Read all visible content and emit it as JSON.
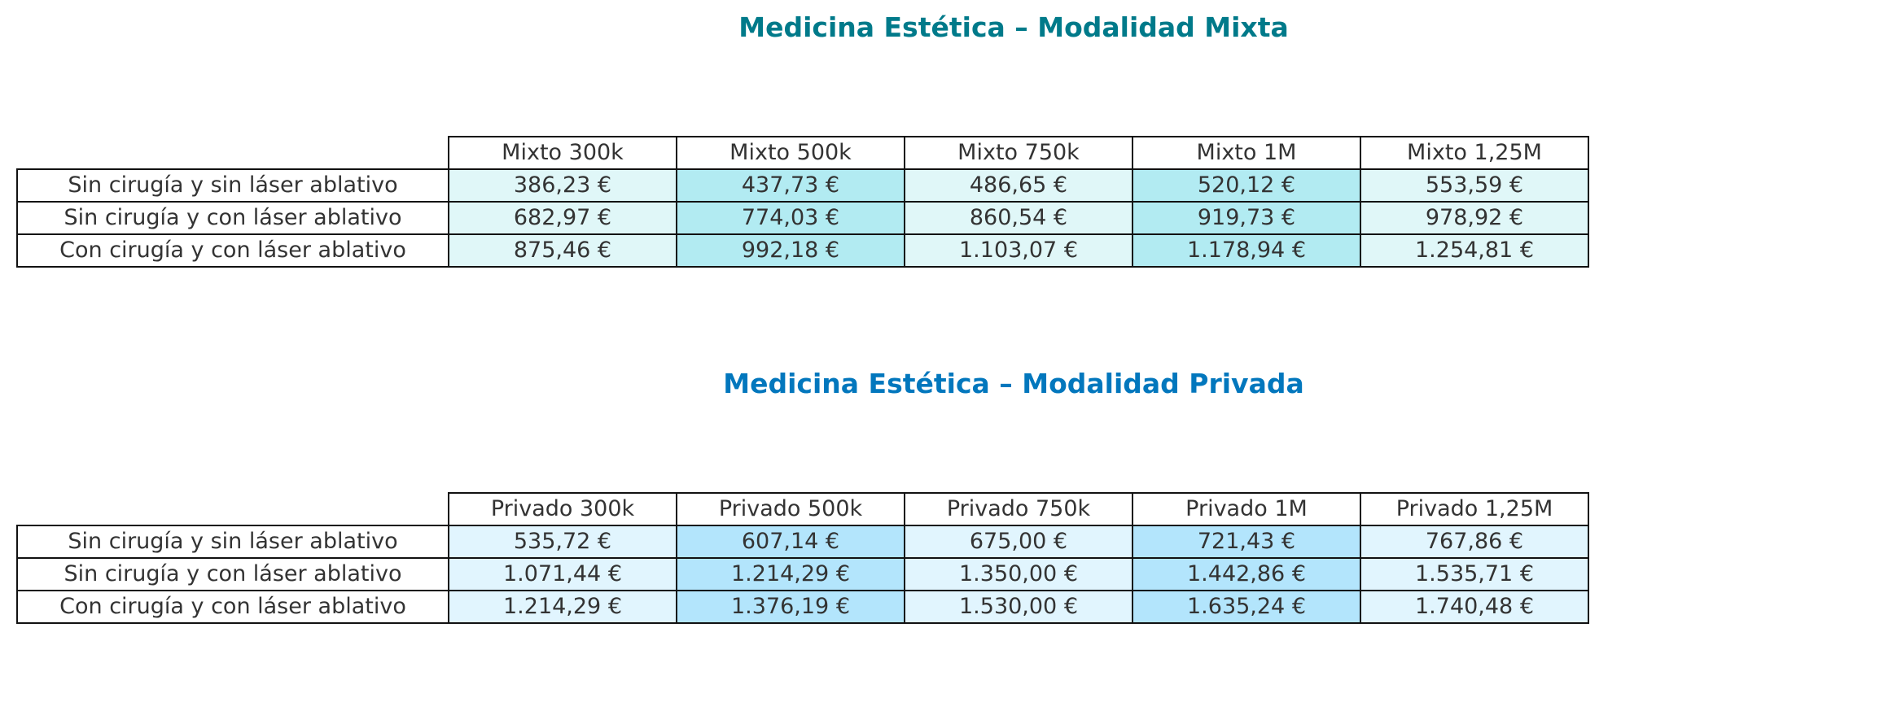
{
  "chart_data": [
    {
      "type": "table",
      "id": "mixta",
      "title": "Medicina Estética – Modalidad Mixta",
      "title_color": "#007a8a",
      "fill_light": "#e0f7f8",
      "fill_dark": "#b2ebf2",
      "columns": [
        "Mixto 300k",
        "Mixto 500k",
        "Mixto 750k",
        "Mixto 1M",
        "Mixto 1,25M"
      ],
      "rows": [
        {
          "label": "Sin cirugía y sin láser ablativo",
          "values": [
            "386,23 €",
            "437,73 €",
            "486,65 €",
            "520,12 €",
            "553,59 €"
          ]
        },
        {
          "label": "Sin cirugía y con láser ablativo",
          "values": [
            "682,97 €",
            "774,03 €",
            "860,54 €",
            "919,73 €",
            "978,92 €"
          ]
        },
        {
          "label": "Con cirugía y con láser ablativo",
          "values": [
            "875,46 €",
            "992,18 €",
            "1.103,07 €",
            "1.178,94 €",
            "1.254,81 €"
          ]
        }
      ]
    },
    {
      "type": "table",
      "id": "privada",
      "title": "Medicina Estética – Modalidad Privada",
      "title_color": "#0277bd",
      "fill_light": "#e1f5fe",
      "fill_dark": "#b3e5fc",
      "columns": [
        "Privado 300k",
        "Privado 500k",
        "Privado 750k",
        "Privado 1M",
        "Privado 1,25M"
      ],
      "rows": [
        {
          "label": "Sin cirugía y sin láser ablativo",
          "values": [
            "535,72 €",
            "607,14 €",
            "675,00 €",
            "721,43 €",
            "767,86 €"
          ]
        },
        {
          "label": "Sin cirugía y con láser ablativo",
          "values": [
            "1.071,44 €",
            "1.214,29 €",
            "1.350,00 €",
            "1.442,86 €",
            "1.535,71 €"
          ]
        },
        {
          "label": "Con cirugía y con láser ablativo",
          "values": [
            "1.214,29 €",
            "1.376,19 €",
            "1.530,00 €",
            "1.635,24 €",
            "1.740,48 €"
          ]
        }
      ]
    }
  ]
}
